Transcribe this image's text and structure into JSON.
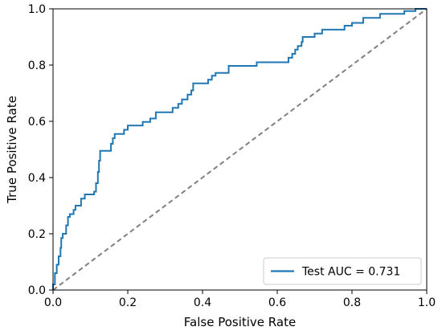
{
  "chart_data": {
    "type": "line",
    "title": "",
    "xlabel": "False Positive Rate",
    "ylabel": "True Positive Rate",
    "xlim": [
      0.0,
      1.0
    ],
    "ylim": [
      0.0,
      1.0
    ],
    "x_ticks": [
      "0.0",
      "0.2",
      "0.4",
      "0.6",
      "0.8",
      "1.0"
    ],
    "y_ticks": [
      "0.0",
      "0.2",
      "0.4",
      "0.6",
      "0.8",
      "1.0"
    ],
    "x_tick_values": [
      0,
      0.2,
      0.4,
      0.6,
      0.8,
      1.0
    ],
    "y_tick_values": [
      0,
      0.2,
      0.4,
      0.6,
      0.8,
      1.0
    ],
    "grid": false,
    "legend_position": "lower-right",
    "series": [
      {
        "name": "Test AUC = 0.731",
        "color": "#1f77b4",
        "style": "step",
        "points": [
          [
            0.0,
            0.0
          ],
          [
            0.0,
            0.02
          ],
          [
            0.005,
            0.02
          ],
          [
            0.005,
            0.06
          ],
          [
            0.01,
            0.06
          ],
          [
            0.01,
            0.09
          ],
          [
            0.015,
            0.09
          ],
          [
            0.015,
            0.12
          ],
          [
            0.02,
            0.12
          ],
          [
            0.02,
            0.15
          ],
          [
            0.022,
            0.15
          ],
          [
            0.022,
            0.185
          ],
          [
            0.026,
            0.185
          ],
          [
            0.026,
            0.2
          ],
          [
            0.035,
            0.2
          ],
          [
            0.035,
            0.23
          ],
          [
            0.04,
            0.23
          ],
          [
            0.04,
            0.26
          ],
          [
            0.045,
            0.26
          ],
          [
            0.045,
            0.27
          ],
          [
            0.055,
            0.27
          ],
          [
            0.055,
            0.285
          ],
          [
            0.06,
            0.285
          ],
          [
            0.06,
            0.3
          ],
          [
            0.075,
            0.3
          ],
          [
            0.075,
            0.325
          ],
          [
            0.085,
            0.325
          ],
          [
            0.085,
            0.34
          ],
          [
            0.11,
            0.34
          ],
          [
            0.11,
            0.35
          ],
          [
            0.115,
            0.35
          ],
          [
            0.115,
            0.38
          ],
          [
            0.12,
            0.38
          ],
          [
            0.12,
            0.42
          ],
          [
            0.123,
            0.42
          ],
          [
            0.123,
            0.46
          ],
          [
            0.126,
            0.46
          ],
          [
            0.126,
            0.495
          ],
          [
            0.155,
            0.495
          ],
          [
            0.155,
            0.52
          ],
          [
            0.16,
            0.52
          ],
          [
            0.16,
            0.54
          ],
          [
            0.165,
            0.54
          ],
          [
            0.165,
            0.555
          ],
          [
            0.19,
            0.555
          ],
          [
            0.19,
            0.57
          ],
          [
            0.2,
            0.57
          ],
          [
            0.2,
            0.585
          ],
          [
            0.24,
            0.585
          ],
          [
            0.24,
            0.598
          ],
          [
            0.26,
            0.598
          ],
          [
            0.26,
            0.61
          ],
          [
            0.275,
            0.61
          ],
          [
            0.275,
            0.632
          ],
          [
            0.32,
            0.632
          ],
          [
            0.32,
            0.648
          ],
          [
            0.335,
            0.648
          ],
          [
            0.335,
            0.662
          ],
          [
            0.345,
            0.662
          ],
          [
            0.345,
            0.678
          ],
          [
            0.36,
            0.678
          ],
          [
            0.36,
            0.695
          ],
          [
            0.37,
            0.695
          ],
          [
            0.37,
            0.71
          ],
          [
            0.375,
            0.71
          ],
          [
            0.375,
            0.735
          ],
          [
            0.415,
            0.735
          ],
          [
            0.415,
            0.748
          ],
          [
            0.425,
            0.748
          ],
          [
            0.425,
            0.762
          ],
          [
            0.435,
            0.762
          ],
          [
            0.435,
            0.772
          ],
          [
            0.47,
            0.772
          ],
          [
            0.47,
            0.797
          ],
          [
            0.545,
            0.797
          ],
          [
            0.545,
            0.81
          ],
          [
            0.63,
            0.81
          ],
          [
            0.63,
            0.826
          ],
          [
            0.64,
            0.826
          ],
          [
            0.64,
            0.84
          ],
          [
            0.648,
            0.84
          ],
          [
            0.648,
            0.855
          ],
          [
            0.655,
            0.855
          ],
          [
            0.655,
            0.868
          ],
          [
            0.665,
            0.868
          ],
          [
            0.665,
            0.882
          ],
          [
            0.668,
            0.882
          ],
          [
            0.668,
            0.9
          ],
          [
            0.7,
            0.9
          ],
          [
            0.7,
            0.912
          ],
          [
            0.72,
            0.912
          ],
          [
            0.72,
            0.926
          ],
          [
            0.78,
            0.926
          ],
          [
            0.78,
            0.94
          ],
          [
            0.8,
            0.94
          ],
          [
            0.8,
            0.95
          ],
          [
            0.83,
            0.95
          ],
          [
            0.83,
            0.968
          ],
          [
            0.875,
            0.968
          ],
          [
            0.875,
            0.982
          ],
          [
            0.94,
            0.982
          ],
          [
            0.94,
            0.992
          ],
          [
            0.97,
            0.992
          ],
          [
            0.97,
            1.0
          ],
          [
            1.0,
            1.0
          ]
        ]
      }
    ],
    "reference_line": {
      "color": "#808080",
      "dash": "dashed",
      "points": [
        [
          0,
          0
        ],
        [
          1,
          1
        ]
      ]
    }
  }
}
